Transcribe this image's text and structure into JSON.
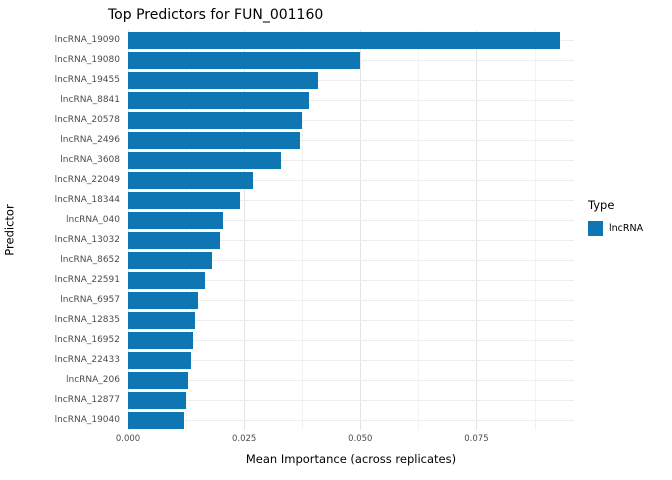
{
  "chart_data": {
    "type": "bar",
    "orientation": "horizontal",
    "title": "Top Predictors for FUN_001160",
    "xlabel": "Mean Importance (across replicates)",
    "ylabel": "Predictor",
    "categories": [
      "lncRNA_19090",
      "lncRNA_19080",
      "lncRNA_19455",
      "lncRNA_8841",
      "lncRNA_20578",
      "lncRNA_2496",
      "lncRNA_3608",
      "lncRNA_22049",
      "lncRNA_18344",
      "lncRNA_040",
      "lncRNA_13032",
      "lncRNA_8652",
      "lncRNA_22591",
      "lncRNA_6957",
      "lncRNA_12835",
      "lncRNA_16952",
      "lncRNA_22433",
      "lncRNA_206",
      "lncRNA_12877",
      "lncRNA_19040"
    ],
    "values": [
      0.093,
      0.05,
      0.041,
      0.039,
      0.0375,
      0.037,
      0.033,
      0.027,
      0.024,
      0.0205,
      0.0198,
      0.018,
      0.0165,
      0.015,
      0.0145,
      0.014,
      0.0135,
      0.013,
      0.0125,
      0.012
    ],
    "series_name": "lncRNA",
    "xlim": [
      0,
      0.096
    ],
    "xticks": [
      0,
      0.025,
      0.05,
      0.075
    ],
    "xtick_labels": [
      "0.000",
      "0.025",
      "0.050",
      "0.075"
    ],
    "grid": true,
    "legend": {
      "title": "Type",
      "position": "right",
      "items": [
        {
          "label": "lncRNA",
          "color": "#0F76B4"
        }
      ]
    }
  },
  "colors": {
    "bar": "#0F76B4",
    "grid_major": "#E4E4E4",
    "grid_minor": "#F2F2F2",
    "grid_horizontal": "#ECECEC",
    "axis_text": "#4D4D4D",
    "title_text": "#000000",
    "background": "#FFFFFF"
  }
}
